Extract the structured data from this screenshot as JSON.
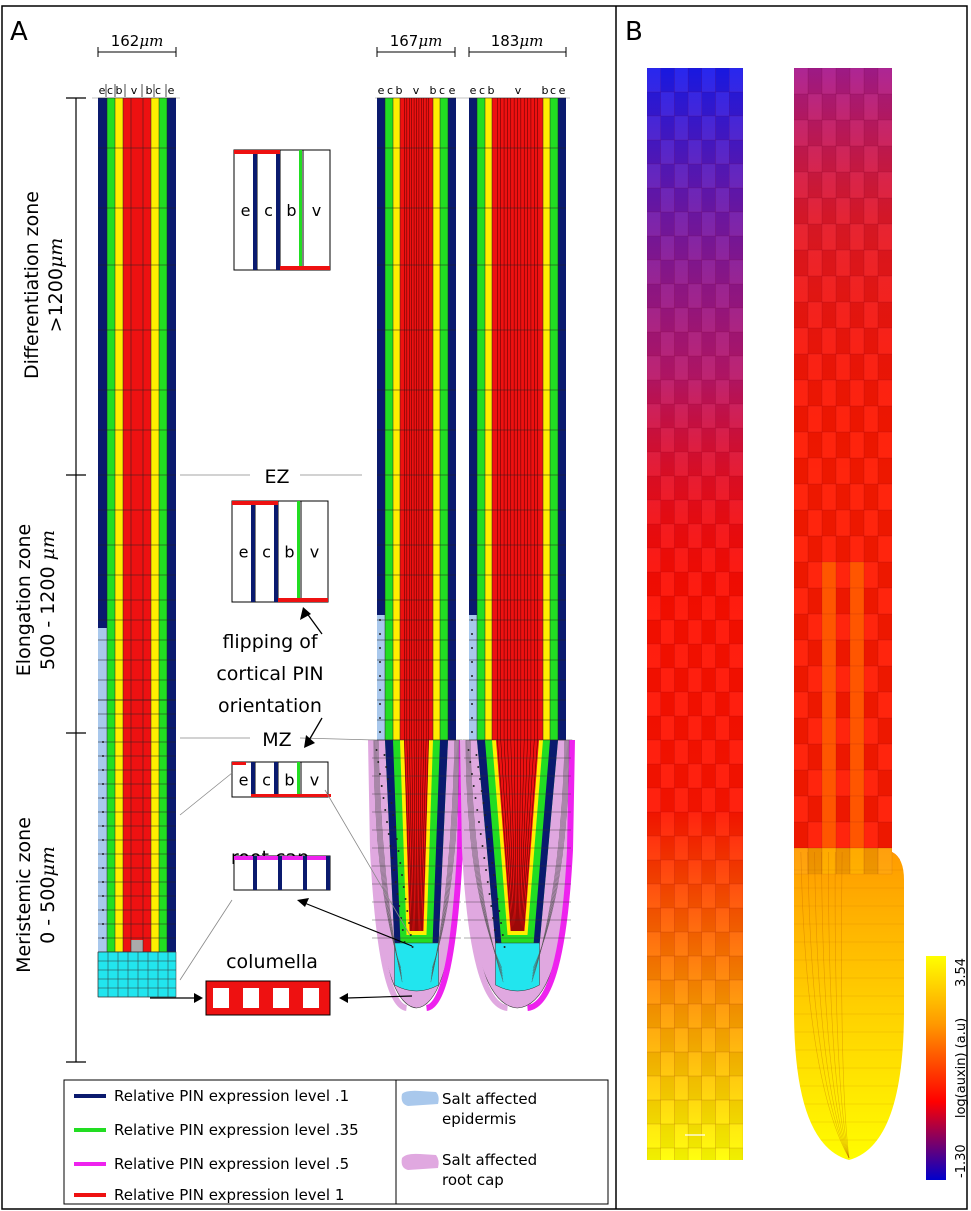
{
  "panel_a": {
    "letter": "A",
    "widths": [
      "162",
      "167",
      "183"
    ],
    "width_unit": "μm",
    "column_letters": [
      "e",
      "c",
      "b",
      "v",
      "b",
      "c",
      "e"
    ],
    "zones": [
      {
        "line1": "Differentiation zone",
        "line2_pre": ">1200",
        "unit": "μm"
      },
      {
        "line1": "Elongation zone",
        "line2_pre": "500 - 1200 ",
        "unit": "μm"
      },
      {
        "line1": "Meristemic zone",
        "line2_pre": "0 - 500",
        "unit": "μm"
      }
    ],
    "ez_label": "EZ",
    "mz_label": "MZ",
    "flip_note": [
      "flipping of",
      "cortical PIN",
      "orientation"
    ],
    "inset_letters": [
      "e",
      "c",
      "b",
      "v"
    ],
    "root_cap_label": "root cap",
    "columella_label": "columella",
    "legend": [
      {
        "label": "Relative PIN expression level .1",
        "color": "#0a1a6e"
      },
      {
        "label": "Relative PIN expression level .35",
        "color": "#22dd22"
      },
      {
        "label": "Relative PIN expression level .5",
        "color": "#ee22ee"
      },
      {
        "label": "Relative PIN expression level 1",
        "color": "#ee1111"
      }
    ],
    "salt_legend": [
      {
        "line1": "Salt affected",
        "line2": "epidermis",
        "color": "#a9c8ec"
      },
      {
        "line1": "Salt affected",
        "line2": "root cap",
        "color": "#e0a8e0"
      }
    ]
  },
  "panel_b": {
    "letter": "B",
    "colorbar": {
      "min_label": "-1.30",
      "max_label": "3.54",
      "label": "log(auxin) (a.u)",
      "stops": [
        "#0000cc",
        "#ff0000",
        "#ffff00"
      ]
    }
  },
  "colors": {
    "epidermis": "#0a1a6e",
    "cortex": "#22dd22",
    "endodermis": "#ffee00",
    "vasculature": "#ee1111",
    "columella": "#22e5ee",
    "rootcap": "#e0a8e0",
    "salt_epidermis": "#a9c8ec"
  }
}
